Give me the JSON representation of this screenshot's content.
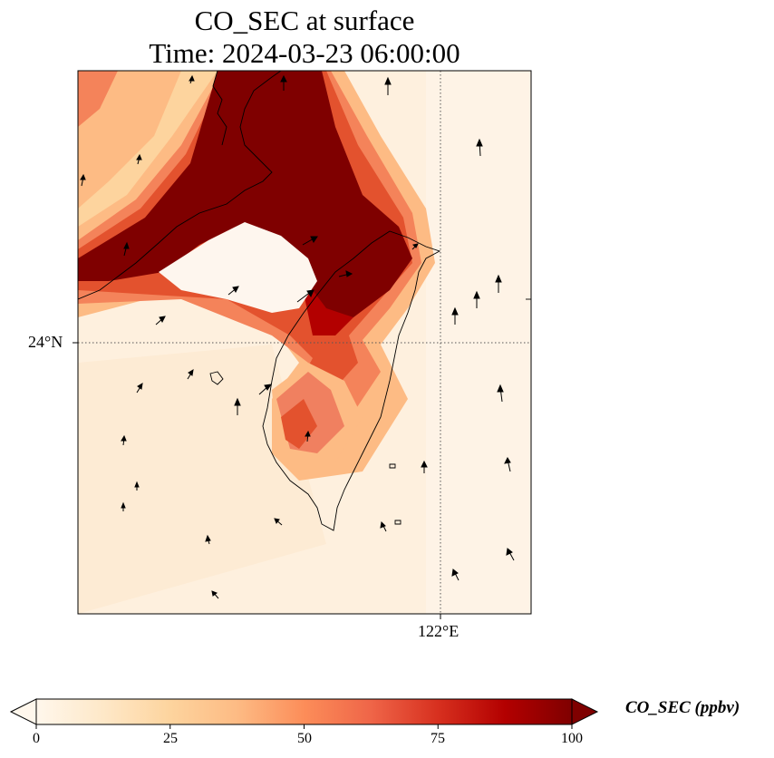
{
  "title": {
    "line1": "CO_SEC at surface",
    "line2": "Time: 2024-03-23 06:00:00"
  },
  "axes": {
    "lat_tick_label": "24°N",
    "lon_tick_label": "122°E"
  },
  "colorbar": {
    "label": "CO_SEC (ppbv)",
    "ticks": [
      "0",
      "25",
      "50",
      "75",
      "100"
    ],
    "min": 0,
    "max": 100,
    "extend": "both",
    "colormap": "OrRd",
    "colors": [
      "#fff7ec",
      "#fee8c8",
      "#fdd49e",
      "#fdbb84",
      "#fc8d59",
      "#ef6548",
      "#d7301f",
      "#b30000",
      "#7f0000"
    ]
  },
  "map": {
    "projection": "plate carree",
    "gridlines": "dotted",
    "coastline_color": "#000000",
    "wind_vectors": true,
    "high_concentration_region": "Taiwan Strait north and Fujian coast",
    "background_level": "near 0 ppbv"
  }
}
